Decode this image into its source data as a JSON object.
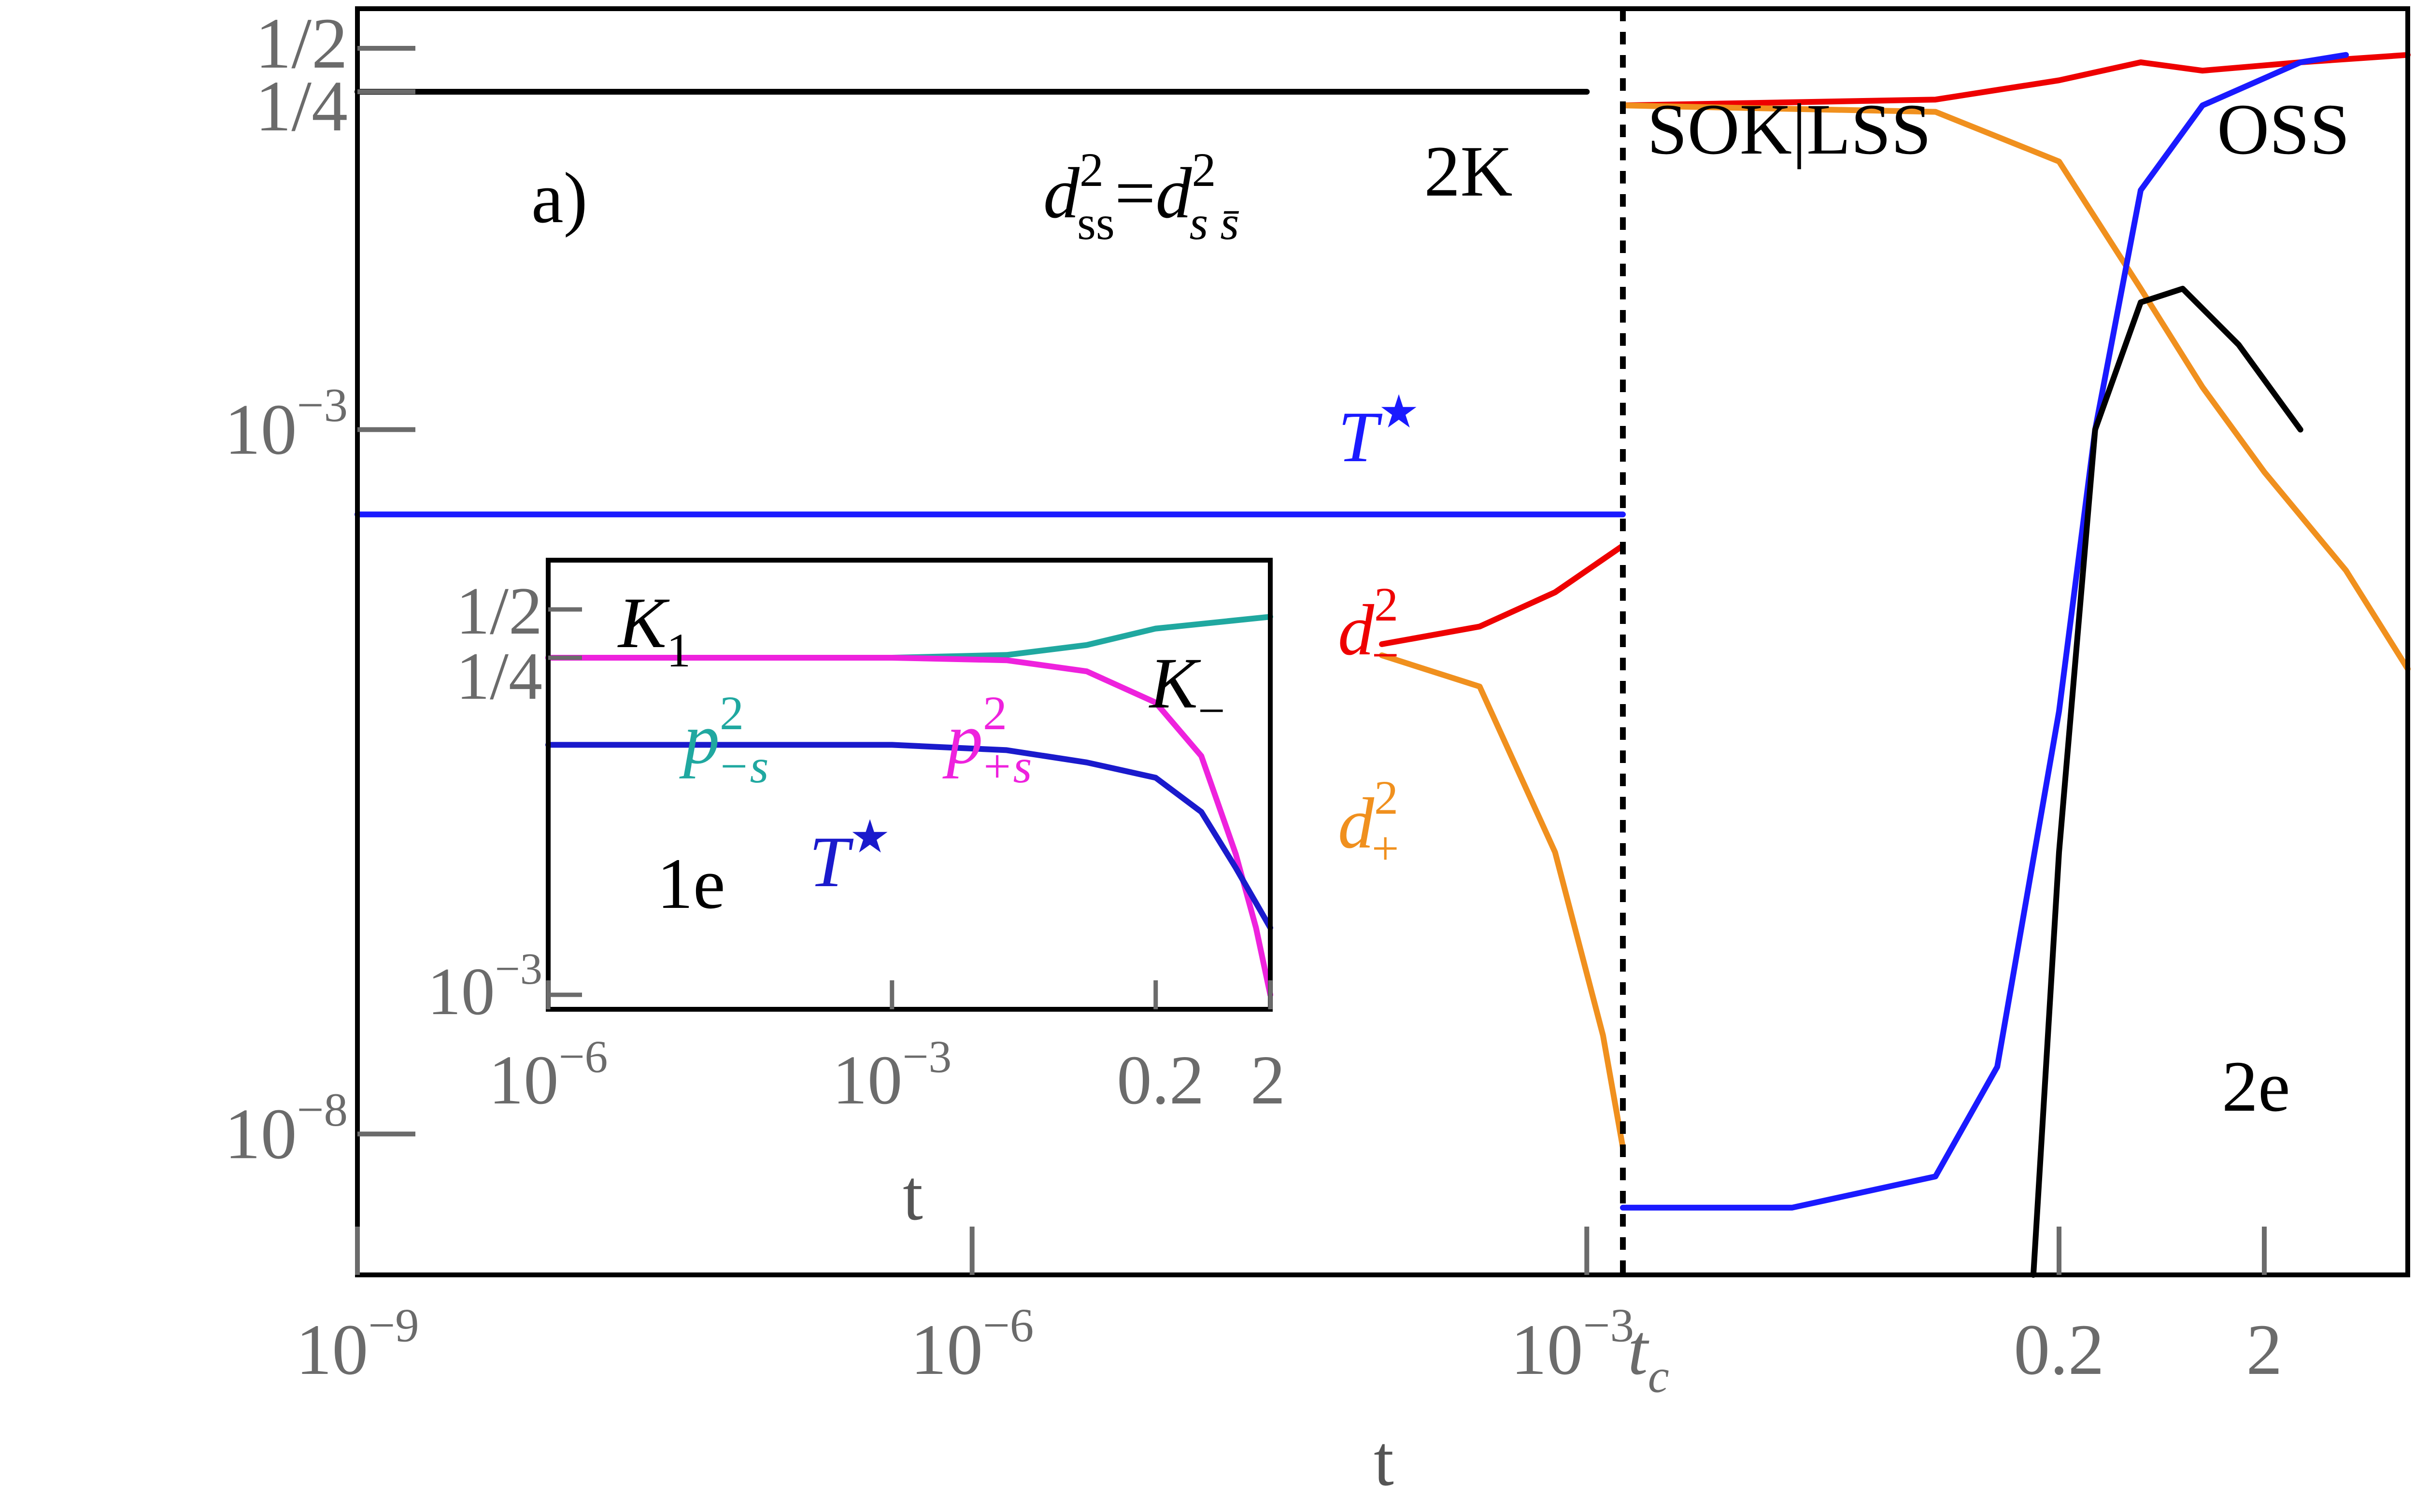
{
  "chart_data": {
    "type": "line",
    "panel_label": "a)",
    "xlabel": "t",
    "x_axis": {
      "scale": "log",
      "xlim": [
        1e-09,
        10
      ],
      "break_at": "t_c",
      "ticks": [
        {
          "value": 1e-09,
          "label_base": "10",
          "label_exp": "−9"
        },
        {
          "value": 1e-06,
          "label_base": "10",
          "label_exp": "−6"
        },
        {
          "value": 0.001,
          "label_base": "10",
          "label_exp": "−3"
        },
        {
          "value": "t_c",
          "label": "t",
          "label_sub": "c"
        },
        {
          "value": 0.2,
          "label": "0.2"
        },
        {
          "value": 2,
          "label": "2"
        }
      ]
    },
    "y_axis": {
      "scale": "log",
      "ticks": [
        {
          "value": 0.5,
          "label": "1/2"
        },
        {
          "value": 0.25,
          "label": "1/4"
        },
        {
          "value": 0.001,
          "label_base": "10",
          "label_exp": "−3"
        },
        {
          "value": 1e-08,
          "label_base": "10",
          "label_exp": "−8"
        }
      ]
    },
    "region_labels": {
      "left": "2K",
      "middle": "SOK|LSS",
      "right": "OSS",
      "bottom_right": "2e"
    },
    "series": [
      {
        "id": "dss",
        "label_base": "d",
        "label_sup": "2",
        "label_sub": "ss",
        "label_eq": "=",
        "label2_base": "d",
        "label2_sup": "2",
        "label2_sub": "s s̄",
        "color": "#000000",
        "x": [
          1e-09,
          0.001
        ],
        "y": [
          0.25,
          0.25
        ]
      },
      {
        "id": "T_left",
        "label_base": "T",
        "label_sup": "★",
        "color": "#1a1aff",
        "x": [
          1e-09,
          0.0015
        ],
        "y": [
          0.00025,
          0.00025
        ]
      },
      {
        "id": "d_minus_left",
        "label_base": "d",
        "label_sup": "2",
        "label_sub": "−",
        "color": "#ee0000",
        "x": [
          0.0001,
          0.0003,
          0.0007,
          0.0015
        ],
        "y": [
          3e-05,
          4e-05,
          7e-05,
          0.00015
        ]
      },
      {
        "id": "d_plus_left",
        "label_base": "d",
        "label_sup": "2",
        "label_sub": "+",
        "color": "#f0901e",
        "x": [
          0.0001,
          0.0003,
          0.0007,
          0.0012,
          0.0015
        ],
        "y": [
          2.5e-05,
          1.5e-05,
          1e-06,
          5e-08,
          8e-09
        ]
      },
      {
        "id": "d_minus_right",
        "color": "#ee0000",
        "x": [
          0.0015,
          0.05,
          0.2,
          0.5,
          1,
          3,
          10
        ],
        "y": [
          0.2,
          0.22,
          0.3,
          0.4,
          0.35,
          0.4,
          0.45
        ]
      },
      {
        "id": "d_plus_right",
        "color": "#f0901e",
        "x": [
          0.0015,
          0.05,
          0.2,
          0.5,
          1,
          2,
          5,
          10
        ],
        "y": [
          0.2,
          0.18,
          0.08,
          0.01,
          0.002,
          0.0005,
          0.0001,
          2e-05
        ]
      },
      {
        "id": "T_right",
        "color": "#1a1aff",
        "x": [
          0.0015,
          0.01,
          0.05,
          0.1,
          0.2,
          0.3,
          0.5,
          1,
          3,
          5
        ],
        "y": [
          3e-09,
          3e-09,
          5e-09,
          3e-08,
          1e-05,
          0.001,
          0.05,
          0.2,
          0.4,
          0.45
        ]
      },
      {
        "id": "black_right",
        "color": "#000000",
        "x": [
          0.15,
          0.2,
          0.3,
          0.5,
          0.8,
          1.5,
          3
        ],
        "y": [
          1e-09,
          1e-06,
          0.001,
          0.008,
          0.01,
          0.004,
          0.001
        ]
      }
    ],
    "inset": {
      "label": "1e",
      "xlabel": "t",
      "corner_labels": [
        {
          "base": "K",
          "sub": "1"
        },
        {
          "base": "K",
          "sub": "−"
        }
      ],
      "x_axis": {
        "scale": "log",
        "xlim": [
          1e-06,
          2
        ],
        "ticks": [
          {
            "value": 1e-06,
            "label_base": "10",
            "label_exp": "−6"
          },
          {
            "value": 0.001,
            "label_base": "10",
            "label_exp": "−3"
          },
          {
            "value": 0.2,
            "label": "0.2"
          },
          {
            "value": 2,
            "label": "2"
          }
        ]
      },
      "y_axis": {
        "scale": "log",
        "ticks": [
          {
            "value": 0.5,
            "label": "1/2"
          },
          {
            "value": 0.25,
            "label": "1/4"
          },
          {
            "value": 0.001,
            "label_base": "10",
            "label_exp": "−3"
          }
        ]
      },
      "series": [
        {
          "id": "p_minus_s",
          "label_base": "p",
          "label_sup": "2",
          "label_sub": "−s",
          "color": "#20a8a0",
          "x": [
            1e-06,
            0.001,
            0.01,
            0.05,
            0.2,
            2
          ],
          "y": [
            0.25,
            0.25,
            0.26,
            0.3,
            0.38,
            0.45
          ]
        },
        {
          "id": "p_plus_s",
          "label_base": "p",
          "label_sup": "2",
          "label_sub": "+s",
          "color": "#ee22dd",
          "x": [
            1e-06,
            0.001,
            0.01,
            0.05,
            0.2,
            0.5,
            1,
            1.5,
            2
          ],
          "y": [
            0.25,
            0.25,
            0.24,
            0.2,
            0.12,
            0.05,
            0.01,
            0.003,
            0.001
          ]
        },
        {
          "id": "T_inset",
          "label_base": "T",
          "label_sup": "★",
          "color": "#1a1acc",
          "x": [
            1e-06,
            0.001,
            0.01,
            0.05,
            0.2,
            0.5,
            1,
            2
          ],
          "y": [
            0.06,
            0.06,
            0.055,
            0.045,
            0.035,
            0.02,
            0.008,
            0.003
          ]
        }
      ]
    }
  }
}
